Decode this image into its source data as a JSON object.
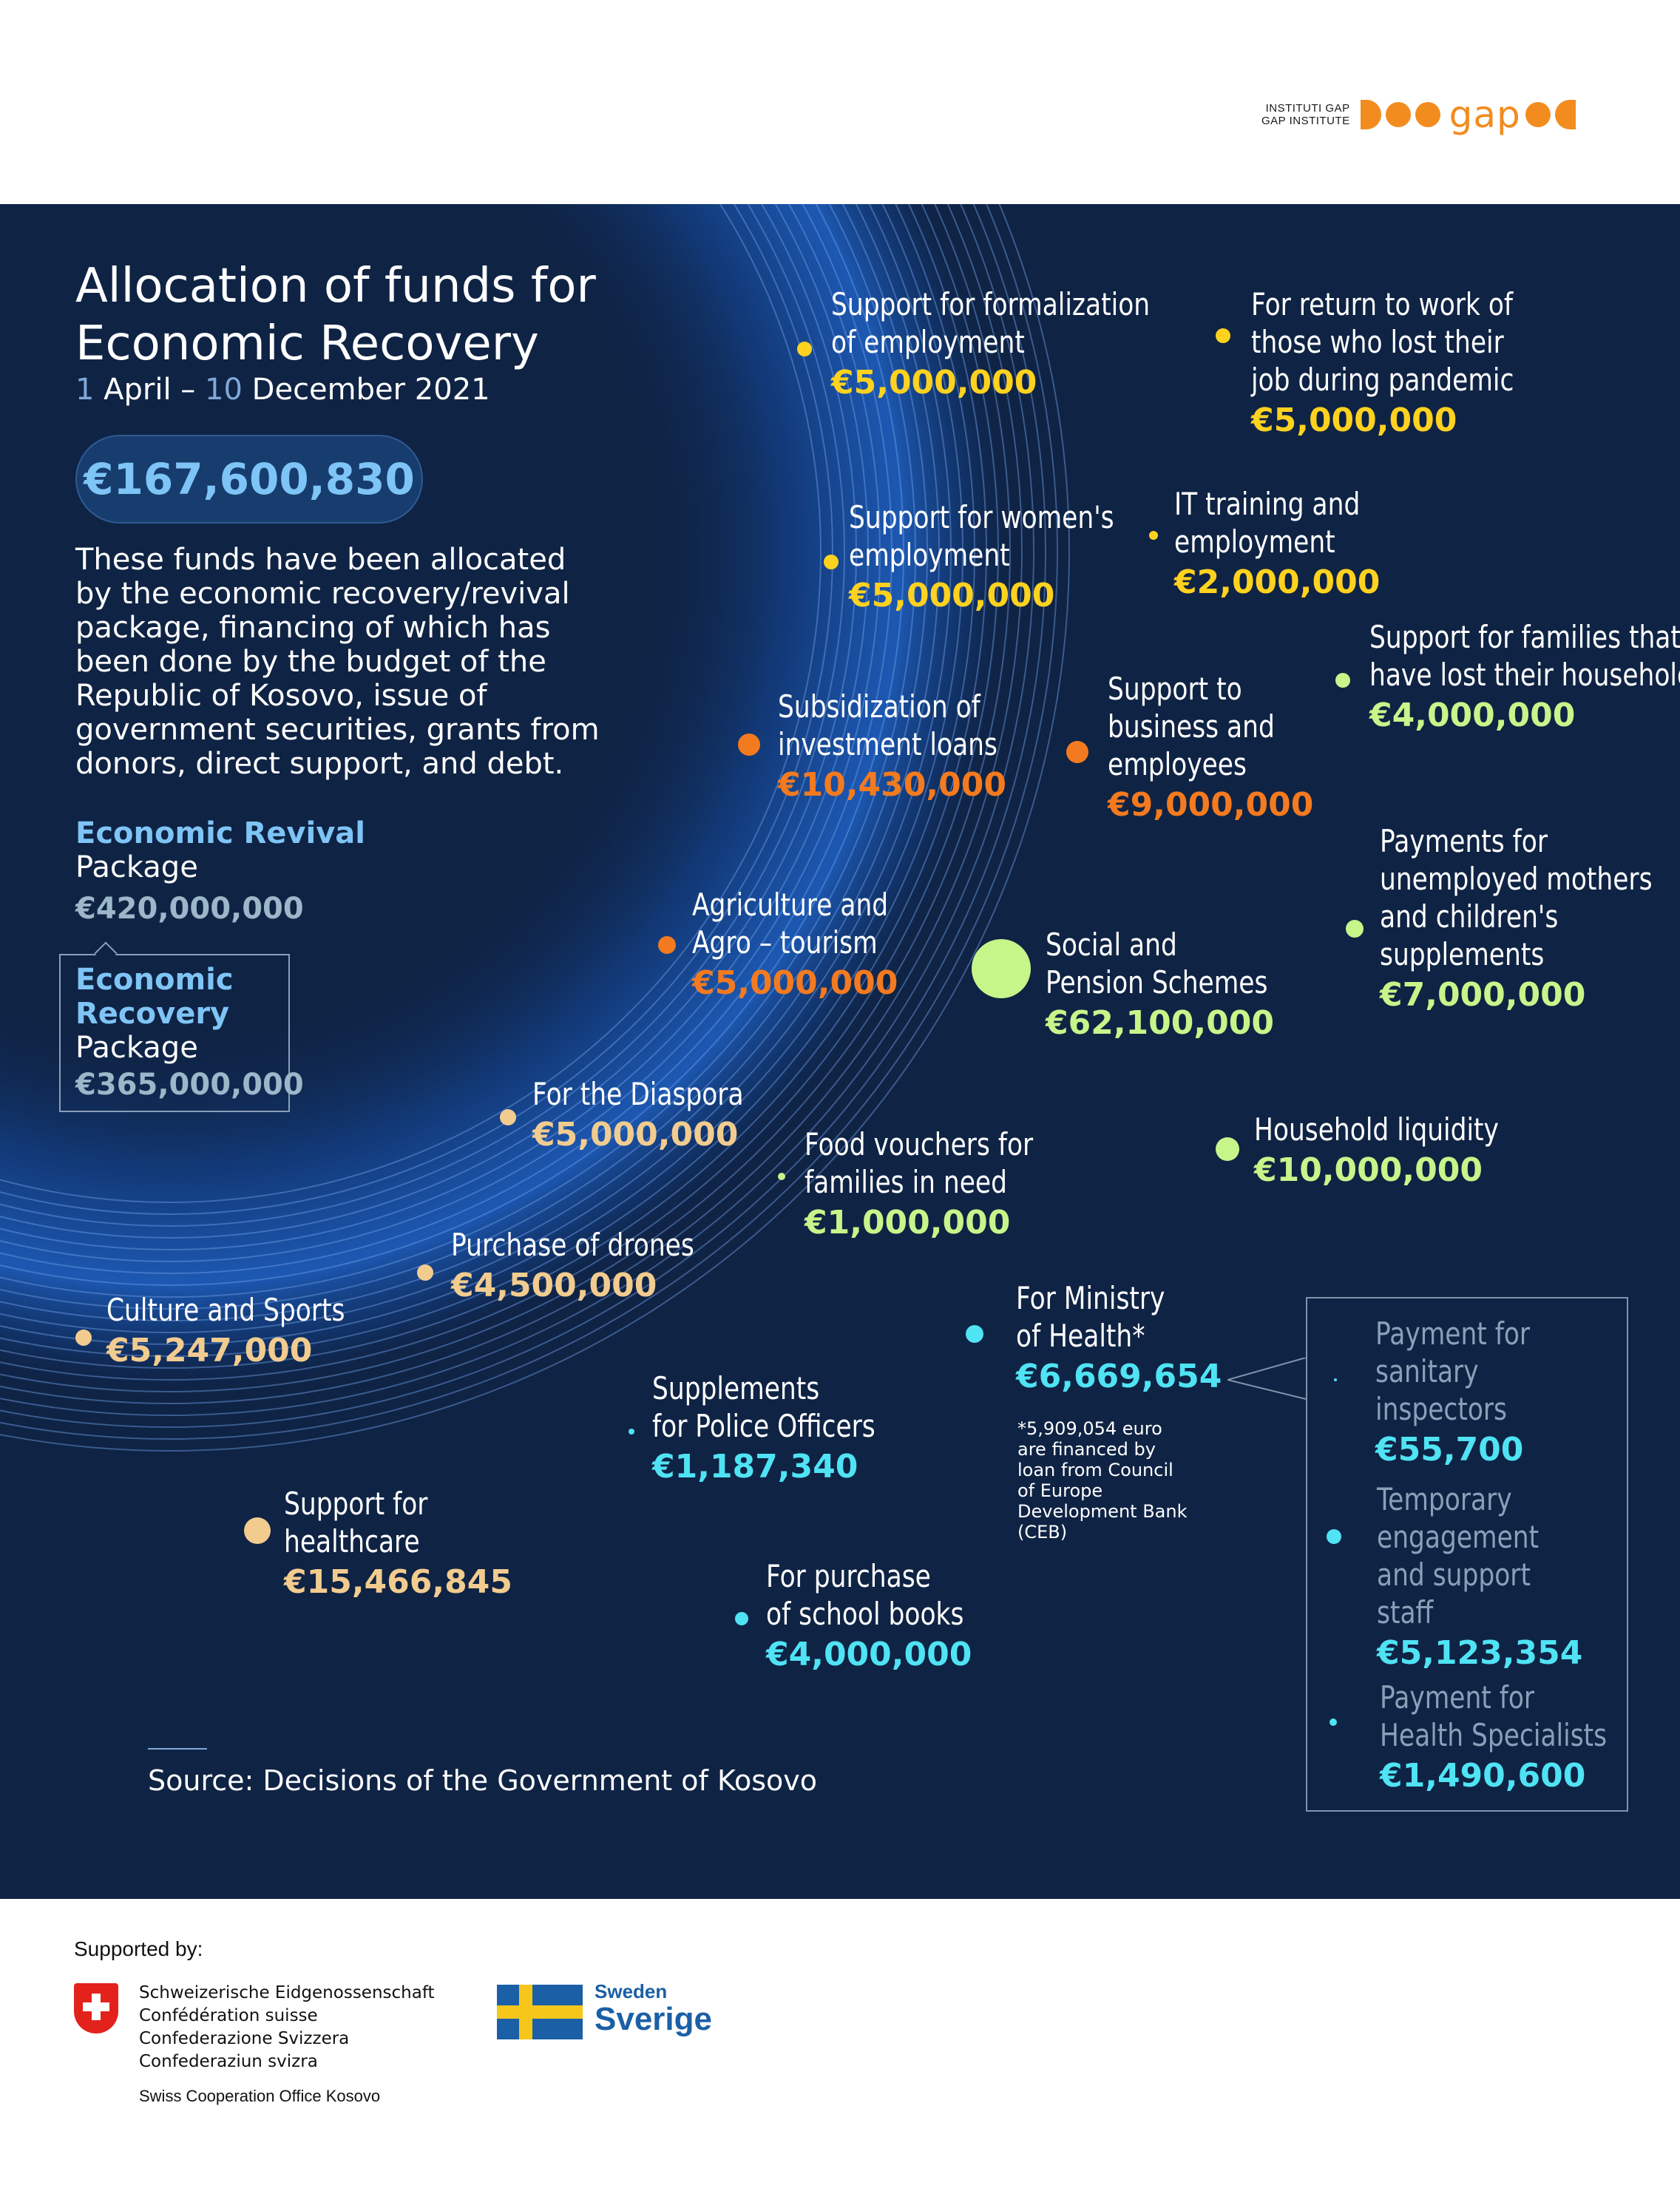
{
  "header": {
    "logo_small_line1": "INSTITUTI GAP",
    "logo_small_line2": "GAP INSTITUTE",
    "logo_word": "gap"
  },
  "intro": {
    "title_line1": "Allocation of funds for",
    "title_line2": "Economic Recovery",
    "date_day1": "1",
    "date_month1": " April – ",
    "date_day2": "10",
    "date_rest": " December 2021",
    "total": "€167,600,830",
    "description": "These funds have been allocated by the economic recovery/revival package, financing of which has been done by the budget of the Republic of Kosovo, issue of government securities, grants from donors, direct support, and debt.",
    "revival_title": "Economic Revival",
    "revival_sub": "Package",
    "revival_value": "€420,000,000",
    "recovery_title_line1": "Economic",
    "recovery_title_line2": "Recovery",
    "recovery_sub": "Package",
    "recovery_value": "€365,000,000"
  },
  "colors": {
    "background": "#0f2344",
    "yellow": "#ffd21f",
    "orange": "#f47a1f",
    "green": "#c6f58a",
    "peach": "#f2cc8f",
    "cyan": "#4fe3f4",
    "accent_blue": "#7fc4f6"
  },
  "items": {
    "formalization": {
      "label1": "Support for formalization",
      "label2": "of employment",
      "value": "€5,000,000"
    },
    "return_work": {
      "label1": "For return to work of",
      "label2": "those who lost their",
      "label3": "job during pandemic",
      "value": "€5,000,000"
    },
    "womens": {
      "label1": "Support for women's",
      "label2": "employment",
      "value": "€5,000,000"
    },
    "it_training": {
      "label1": "IT training and",
      "label2": "employment",
      "value": "€2,000,000"
    },
    "families_household": {
      "label1": "Support for families that",
      "label2": "have lost their household",
      "value": "€4,000,000"
    },
    "investment_loans": {
      "label1": "Subsidization of",
      "label2": "investment loans",
      "value": "€10,430,000"
    },
    "business": {
      "label1": "Support to",
      "label2": "business and",
      "label3": "employees",
      "value": "€9,000,000"
    },
    "unemployed_mothers": {
      "label1": "Payments for",
      "label2": "unemployed mothers",
      "label3": "and children's",
      "label4": "supplements",
      "value": "€7,000,000"
    },
    "agriculture": {
      "label1": "Agriculture and",
      "label2": "Agro – tourism",
      "value": "€5,000,000"
    },
    "social_pension": {
      "label1": "Social and",
      "label2": "Pension Schemes",
      "value": "€62,100,000"
    },
    "diaspora": {
      "label1": "For the Diaspora",
      "value": "€5,000,000"
    },
    "food_vouchers": {
      "label1": "Food vouchers for",
      "label2": "families in need",
      "value": "€1,000,000"
    },
    "household_liquidity": {
      "label1": "Household liquidity",
      "value": "€10,000,000"
    },
    "drones": {
      "label1": "Purchase of drones",
      "value": "€4,500,000"
    },
    "culture_sports": {
      "label1": "Culture and Sports",
      "value": "€5,247,000"
    },
    "ministry_health": {
      "label1": "For Ministry",
      "label2": "of Health*",
      "value": "€6,669,654",
      "note": "*5,909,054 euro are financed by loan from Council of Europe Development Bank (CEB)"
    },
    "police": {
      "label1": "Supplements",
      "label2": "for Police Officers",
      "value": "€1,187,340"
    },
    "healthcare": {
      "label1": "Support for",
      "label2": "healthcare",
      "value": "€15,466,845"
    },
    "school_books": {
      "label1": "For purchase",
      "label2": "of school books",
      "value": "€4,000,000"
    },
    "sanitary": {
      "label1": "Payment for",
      "label2": "sanitary",
      "label3": "inspectors",
      "value": "€55,700"
    },
    "temporary_staff": {
      "label1": "Temporary",
      "label2": "engagement",
      "label3": "and support",
      "label4": "staff",
      "value": "€5,123,354"
    },
    "health_specialists": {
      "label1": "Payment for",
      "label2": "Health Specialists",
      "value": "€1,490,600"
    }
  },
  "source": "Source: Decisions of the Government of Kosovo",
  "footer": {
    "supported_by": "Supported by:",
    "swiss_line1": "Schweizerische Eidgenossenschaft",
    "swiss_line2": "Confédération suisse",
    "swiss_line3": "Confederazione Svizzera",
    "swiss_line4": "Confederaziun svizra",
    "swiss_office": "Swiss Cooperation Office Kosovo",
    "sweden_line1": "Sweden",
    "sweden_line2": "Sverige"
  }
}
